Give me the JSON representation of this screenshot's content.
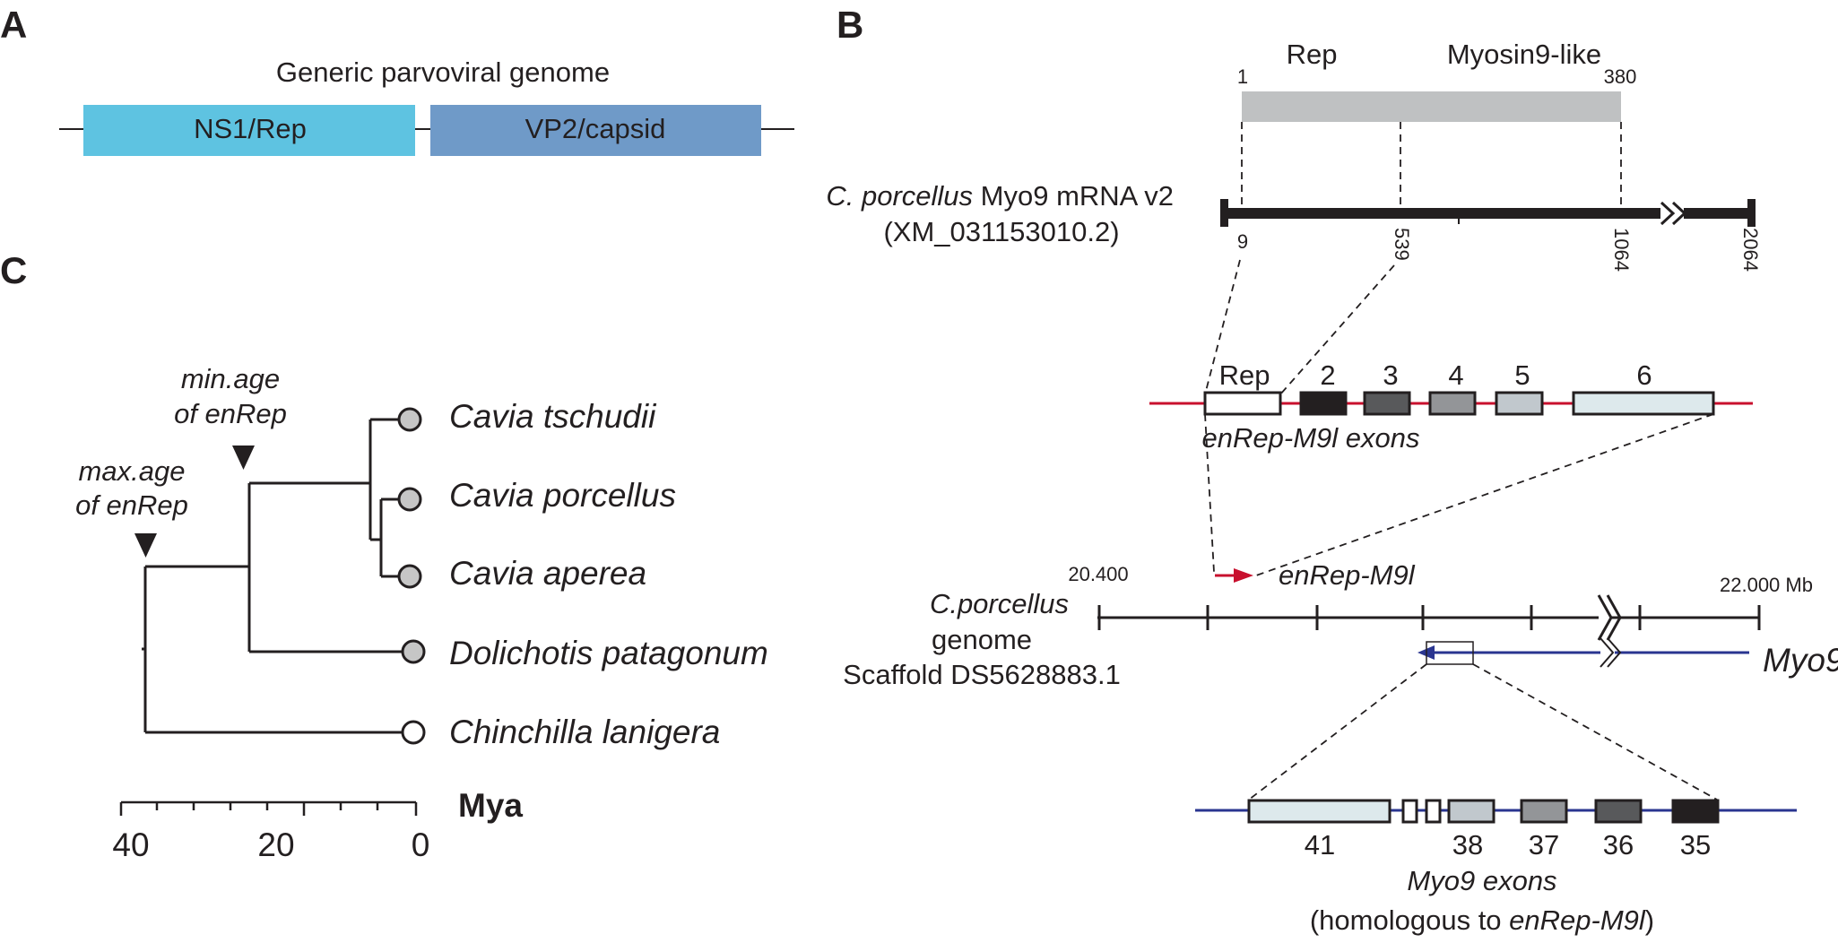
{
  "panel_a": {
    "letter": "A",
    "title": "Generic parvoviral genome",
    "segments": [
      "NS1/Rep",
      "VP2/capsid"
    ],
    "colors": {
      "ns1": "#5ec3e1",
      "vp2": "#6f9ac8"
    }
  },
  "panel_b": {
    "letter": "B",
    "protein_labels": {
      "rep": "Rep",
      "myo": "Myosin9-like"
    },
    "protein_ticks": {
      "start": "1",
      "end": "380"
    },
    "mrna_label": {
      "species": "C. porcellus",
      "rest": " Myo9 mRNA v2",
      "accession": "(XM_031153010.2)"
    },
    "mrna_ticks": [
      "9",
      "539",
      "1064",
      "2064"
    ],
    "enrep_exons": [
      "Rep",
      "2",
      "3",
      "4",
      "5",
      "6"
    ],
    "enrep_caption": "enRep-M9l exons",
    "genome_label": [
      "C.porcellus",
      "genome",
      "Scaffold DS5628883.1"
    ],
    "coords": {
      "start": "20.400",
      "end": "22.000 Mb"
    },
    "enrep_gene": "enRep-M9l",
    "myo9_gene": "Myo9",
    "myo9_exons": [
      "41",
      "38",
      "37",
      "36",
      "35"
    ],
    "myo9_caption": "Myo9 exons",
    "homolog_caption": {
      "pre": "(homologous to ",
      "gene": "enRep-M9l",
      "post": ")"
    },
    "colors": {
      "enrep_line": "#c8102e",
      "myo9_line": "#2a3590",
      "protein_bar": "#bfc1c2"
    }
  },
  "panel_c": {
    "letter": "C",
    "min_age": [
      "min.age",
      "of enRep"
    ],
    "max_age": [
      "max.age",
      "of enRep"
    ],
    "taxa": [
      "Cavia tschudii",
      "Cavia porcellus",
      "Cavia aperea",
      "Dolichotis patagonum",
      "Chinchilla lanigera"
    ],
    "axis_ticks": [
      "40",
      "20",
      "0"
    ],
    "axis_label": "Mya"
  }
}
